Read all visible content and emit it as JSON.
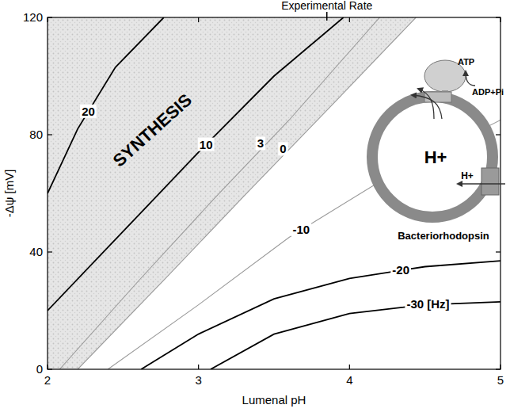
{
  "chart_data": {
    "type": "contour",
    "x_label": "Lumenal pH",
    "y_label": "-Δψ [mV]",
    "xlim": [
      2,
      5
    ],
    "ylim": [
      0,
      120
    ],
    "xticks": [
      2,
      3,
      4,
      5
    ],
    "yticks": [
      0,
      40,
      80,
      120
    ],
    "grid": false,
    "series": [
      {
        "name": "20",
        "color": "#000000",
        "x": [
          2,
          2.2,
          2.45,
          2.77
        ],
        "values": [
          60,
          82,
          103,
          120
        ]
      },
      {
        "name": "10",
        "color": "#000000",
        "x": [
          2,
          2.5,
          3,
          3.5,
          3.96
        ],
        "values": [
          20,
          47,
          74,
          100,
          120
        ]
      },
      {
        "name": "3",
        "color": "#9a9a9a",
        "x": [
          2.08,
          2.6,
          3.1,
          3.6,
          4.2
        ],
        "values": [
          0,
          30,
          58,
          85,
          120
        ]
      },
      {
        "name": "0",
        "color": "#9a9a9a",
        "x": [
          2.2,
          2.8,
          3.3,
          3.9,
          4.44
        ],
        "values": [
          0,
          32,
          59,
          91,
          120
        ]
      },
      {
        "name": "-10",
        "color": "#9a9a9a",
        "x": [
          2.4,
          3,
          3.6,
          4.2,
          5
        ],
        "values": [
          0,
          22,
          45,
          64,
          85
        ]
      },
      {
        "name": "-20",
        "color": "#000000",
        "x": [
          2.62,
          3,
          3.5,
          4,
          4.5,
          5
        ],
        "values": [
          0,
          12,
          24,
          31,
          35,
          37
        ]
      },
      {
        "name": "-30 [Hz]",
        "color": "#000000",
        "x": [
          3.08,
          3.5,
          4,
          4.5,
          5
        ],
        "values": [
          0,
          12,
          19,
          22,
          23
        ]
      }
    ],
    "annotations": [
      {
        "text": "Experimental Rate",
        "x": 3.85
      },
      {
        "text": "SYNTHESIS",
        "x": 2.72,
        "y": 80
      }
    ],
    "inset": {
      "labels": [
        "H+",
        "ATP",
        "ADP+Pi",
        "H+",
        "Bacteriorhodopsin"
      ]
    }
  }
}
